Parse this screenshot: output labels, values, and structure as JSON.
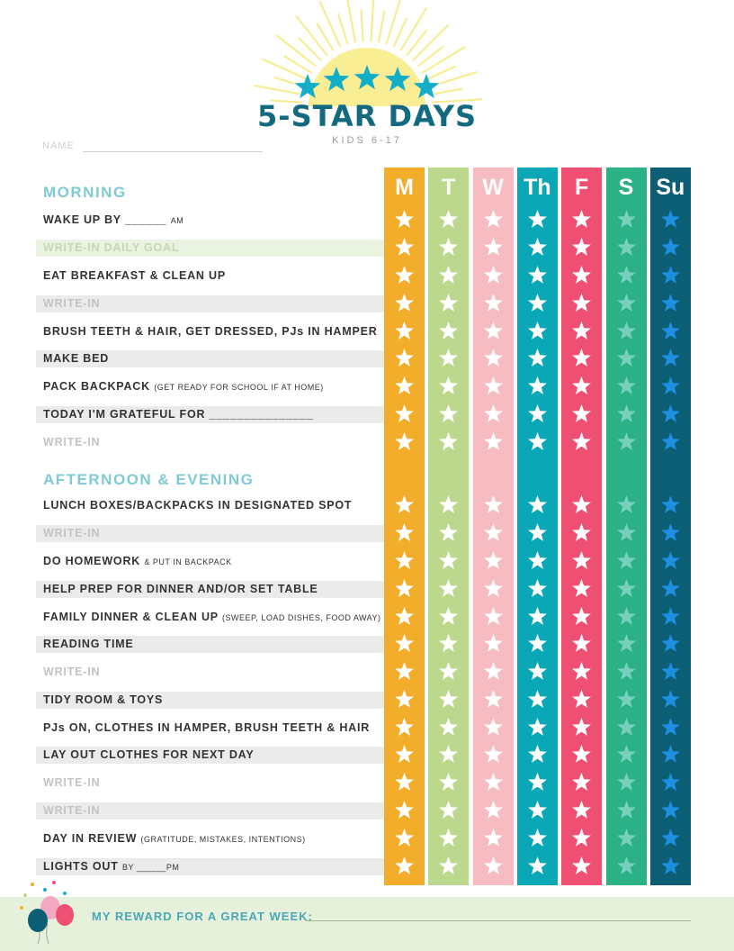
{
  "header": {
    "title": "5-STAR DAYS",
    "subtitle": "KIDS 6-17",
    "name_label": "NAME"
  },
  "days": [
    {
      "label": "M",
      "color": "#f2ae2b",
      "star_color": "#ffffff"
    },
    {
      "label": "T",
      "color": "#bcd88c",
      "star_color": "#ffffff"
    },
    {
      "label": "W",
      "color": "#f6bcc2",
      "star_color": "#ffffff"
    },
    {
      "label": "Th",
      "color": "#0aa8b6",
      "star_color": "#ffffff"
    },
    {
      "label": "F",
      "color": "#ef4f72",
      "star_color": "#ffffff"
    },
    {
      "label": "S",
      "color": "#2bb185",
      "star_color": "#76d0bd"
    },
    {
      "label": "Su",
      "color": "#0b5e74",
      "star_color": "#1c8fe0"
    }
  ],
  "morning": {
    "title": "MORNING",
    "rows": [
      {
        "main": "WAKE UP BY ______",
        "small": "AM",
        "style": "plain"
      },
      {
        "main": "WRITE-IN DAILY GOAL",
        "small": "",
        "style": "goal"
      },
      {
        "main": "EAT BREAKFAST & CLEAN UP",
        "small": "",
        "style": "plain"
      },
      {
        "main": "WRITE-IN",
        "small": "",
        "style": "write-in-shaded"
      },
      {
        "main": "BRUSH TEETH & HAIR, GET DRESSED, PJs IN HAMPER",
        "small": "",
        "style": "plain"
      },
      {
        "main": "MAKE BED",
        "small": "",
        "style": "shaded"
      },
      {
        "main": "PACK BACKPACK",
        "small": "(GET READY FOR SCHOOL IF AT HOME)",
        "style": "plain"
      },
      {
        "main": "TODAY I'M GRATEFUL FOR  _______________",
        "small": "",
        "style": "shaded"
      },
      {
        "main": "WRITE-IN",
        "small": "",
        "style": "write-in"
      }
    ]
  },
  "afternoon": {
    "title": "AFTERNOON & EVENING",
    "rows": [
      {
        "main": "LUNCH BOXES/BACKPACKS IN DESIGNATED SPOT",
        "small": "",
        "style": "plain"
      },
      {
        "main": "WRITE-IN",
        "small": "",
        "style": "write-in-shaded"
      },
      {
        "main": "DO HOMEWORK",
        "small": "& PUT IN BACKPACK",
        "style": "plain"
      },
      {
        "main": "HELP PREP FOR DINNER AND/OR SET TABLE",
        "small": "",
        "style": "shaded"
      },
      {
        "main": "FAMILY DINNER & CLEAN UP",
        "small": "(SWEEP, LOAD DISHES, FOOD AWAY)",
        "style": "plain"
      },
      {
        "main": "READING TIME",
        "small": "",
        "style": "shaded"
      },
      {
        "main": "WRITE-IN",
        "small": "",
        "style": "write-in"
      },
      {
        "main": "TIDY ROOM & TOYS",
        "small": "",
        "style": "shaded"
      },
      {
        "main": "PJs ON, CLOTHES IN HAMPER, BRUSH TEETH & HAIR",
        "small": "",
        "style": "plain"
      },
      {
        "main": "LAY OUT CLOTHES FOR NEXT DAY",
        "small": "",
        "style": "shaded"
      },
      {
        "main": "WRITE-IN",
        "small": "",
        "style": "write-in"
      },
      {
        "main": "WRITE-IN",
        "small": "",
        "style": "write-in-shaded"
      },
      {
        "main": "DAY IN REVIEW",
        "small": "(GRATITUDE, MISTAKES, INTENTIONS)",
        "style": "plain"
      },
      {
        "main": "LIGHTS OUT",
        "small": "BY ______PM",
        "style": "shaded"
      }
    ]
  },
  "footer": {
    "reward_label": "MY REWARD FOR A GREAT WEEK:"
  }
}
